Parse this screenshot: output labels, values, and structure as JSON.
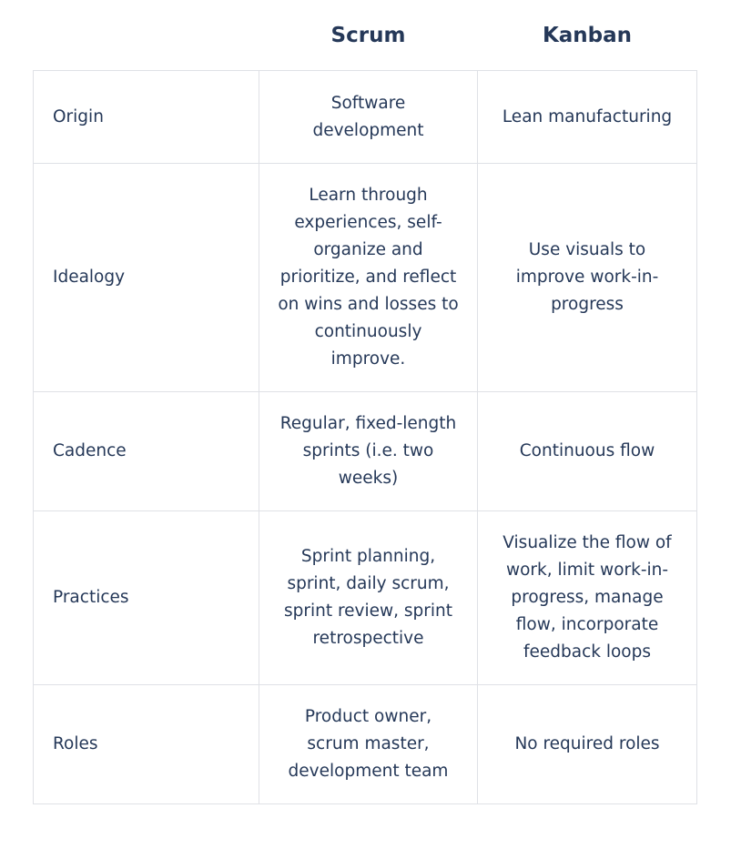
{
  "header": {
    "col1": "",
    "col2": "Scrum",
    "col3": "Kanban"
  },
  "rows": [
    {
      "label": "Origin",
      "scrum": "Software development",
      "kanban": "Lean manufacturing"
    },
    {
      "label": "Idealogy",
      "scrum": "Learn through experiences, self-organize and prioritize, and reflect on wins and losses to continuously improve.",
      "kanban": "Use visuals to improve work-in-progress"
    },
    {
      "label": "Cadence",
      "scrum": "Regular, fixed-length sprints (i.e. two weeks)",
      "kanban": "Continuous flow"
    },
    {
      "label": "Practices",
      "scrum": "Sprint planning, sprint, daily scrum, sprint review, sprint retrospective",
      "kanban": "Visualize the flow of work, limit work-in-progress, manage flow, incorporate feedback loops"
    },
    {
      "label": "Roles",
      "scrum": "Product owner, scrum master, development team",
      "kanban": "No required roles"
    }
  ]
}
